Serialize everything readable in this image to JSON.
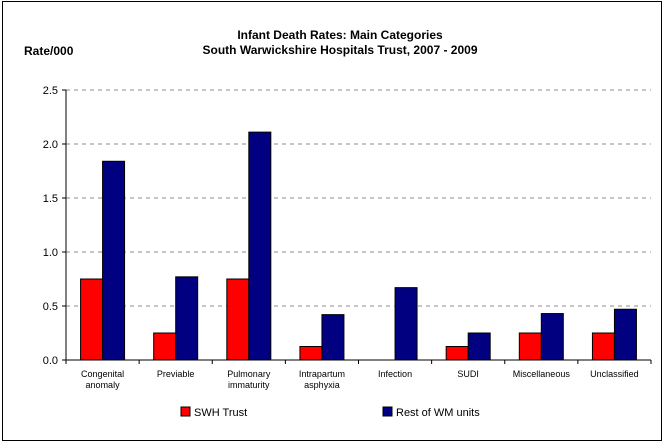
{
  "chart_data": {
    "type": "bar",
    "title": "Infant Death Rates: Main Categories",
    "subtitle": "South Warwickshire Hospitals Trust, 2007 - 2009",
    "ylabel": "Rate/000",
    "xlabel": "",
    "ylim": [
      0,
      2.5
    ],
    "yticks": [
      "0.0",
      "0.5",
      "1.0",
      "1.5",
      "2.0",
      "2.5"
    ],
    "grid": true,
    "legend_position": "bottom",
    "categories": [
      [
        "Congenital",
        "anomaly"
      ],
      [
        "Previable"
      ],
      [
        "Pulmonary",
        "immaturity"
      ],
      [
        "Intrapartum",
        "asphyxia"
      ],
      [
        "Infection"
      ],
      [
        "SUDI"
      ],
      [
        "Miscellaneous"
      ],
      [
        "Unclassified"
      ]
    ],
    "series": [
      {
        "name": "SWH Trust",
        "color": "#ff0000",
        "values": [
          0.75,
          0.25,
          0.75,
          0.125,
          0,
          0.125,
          0.25,
          0.25
        ]
      },
      {
        "name": "Rest of WM units",
        "color": "#000080",
        "values": [
          1.84,
          0.77,
          2.11,
          0.42,
          0.67,
          0.25,
          0.43,
          0.47
        ]
      }
    ]
  }
}
